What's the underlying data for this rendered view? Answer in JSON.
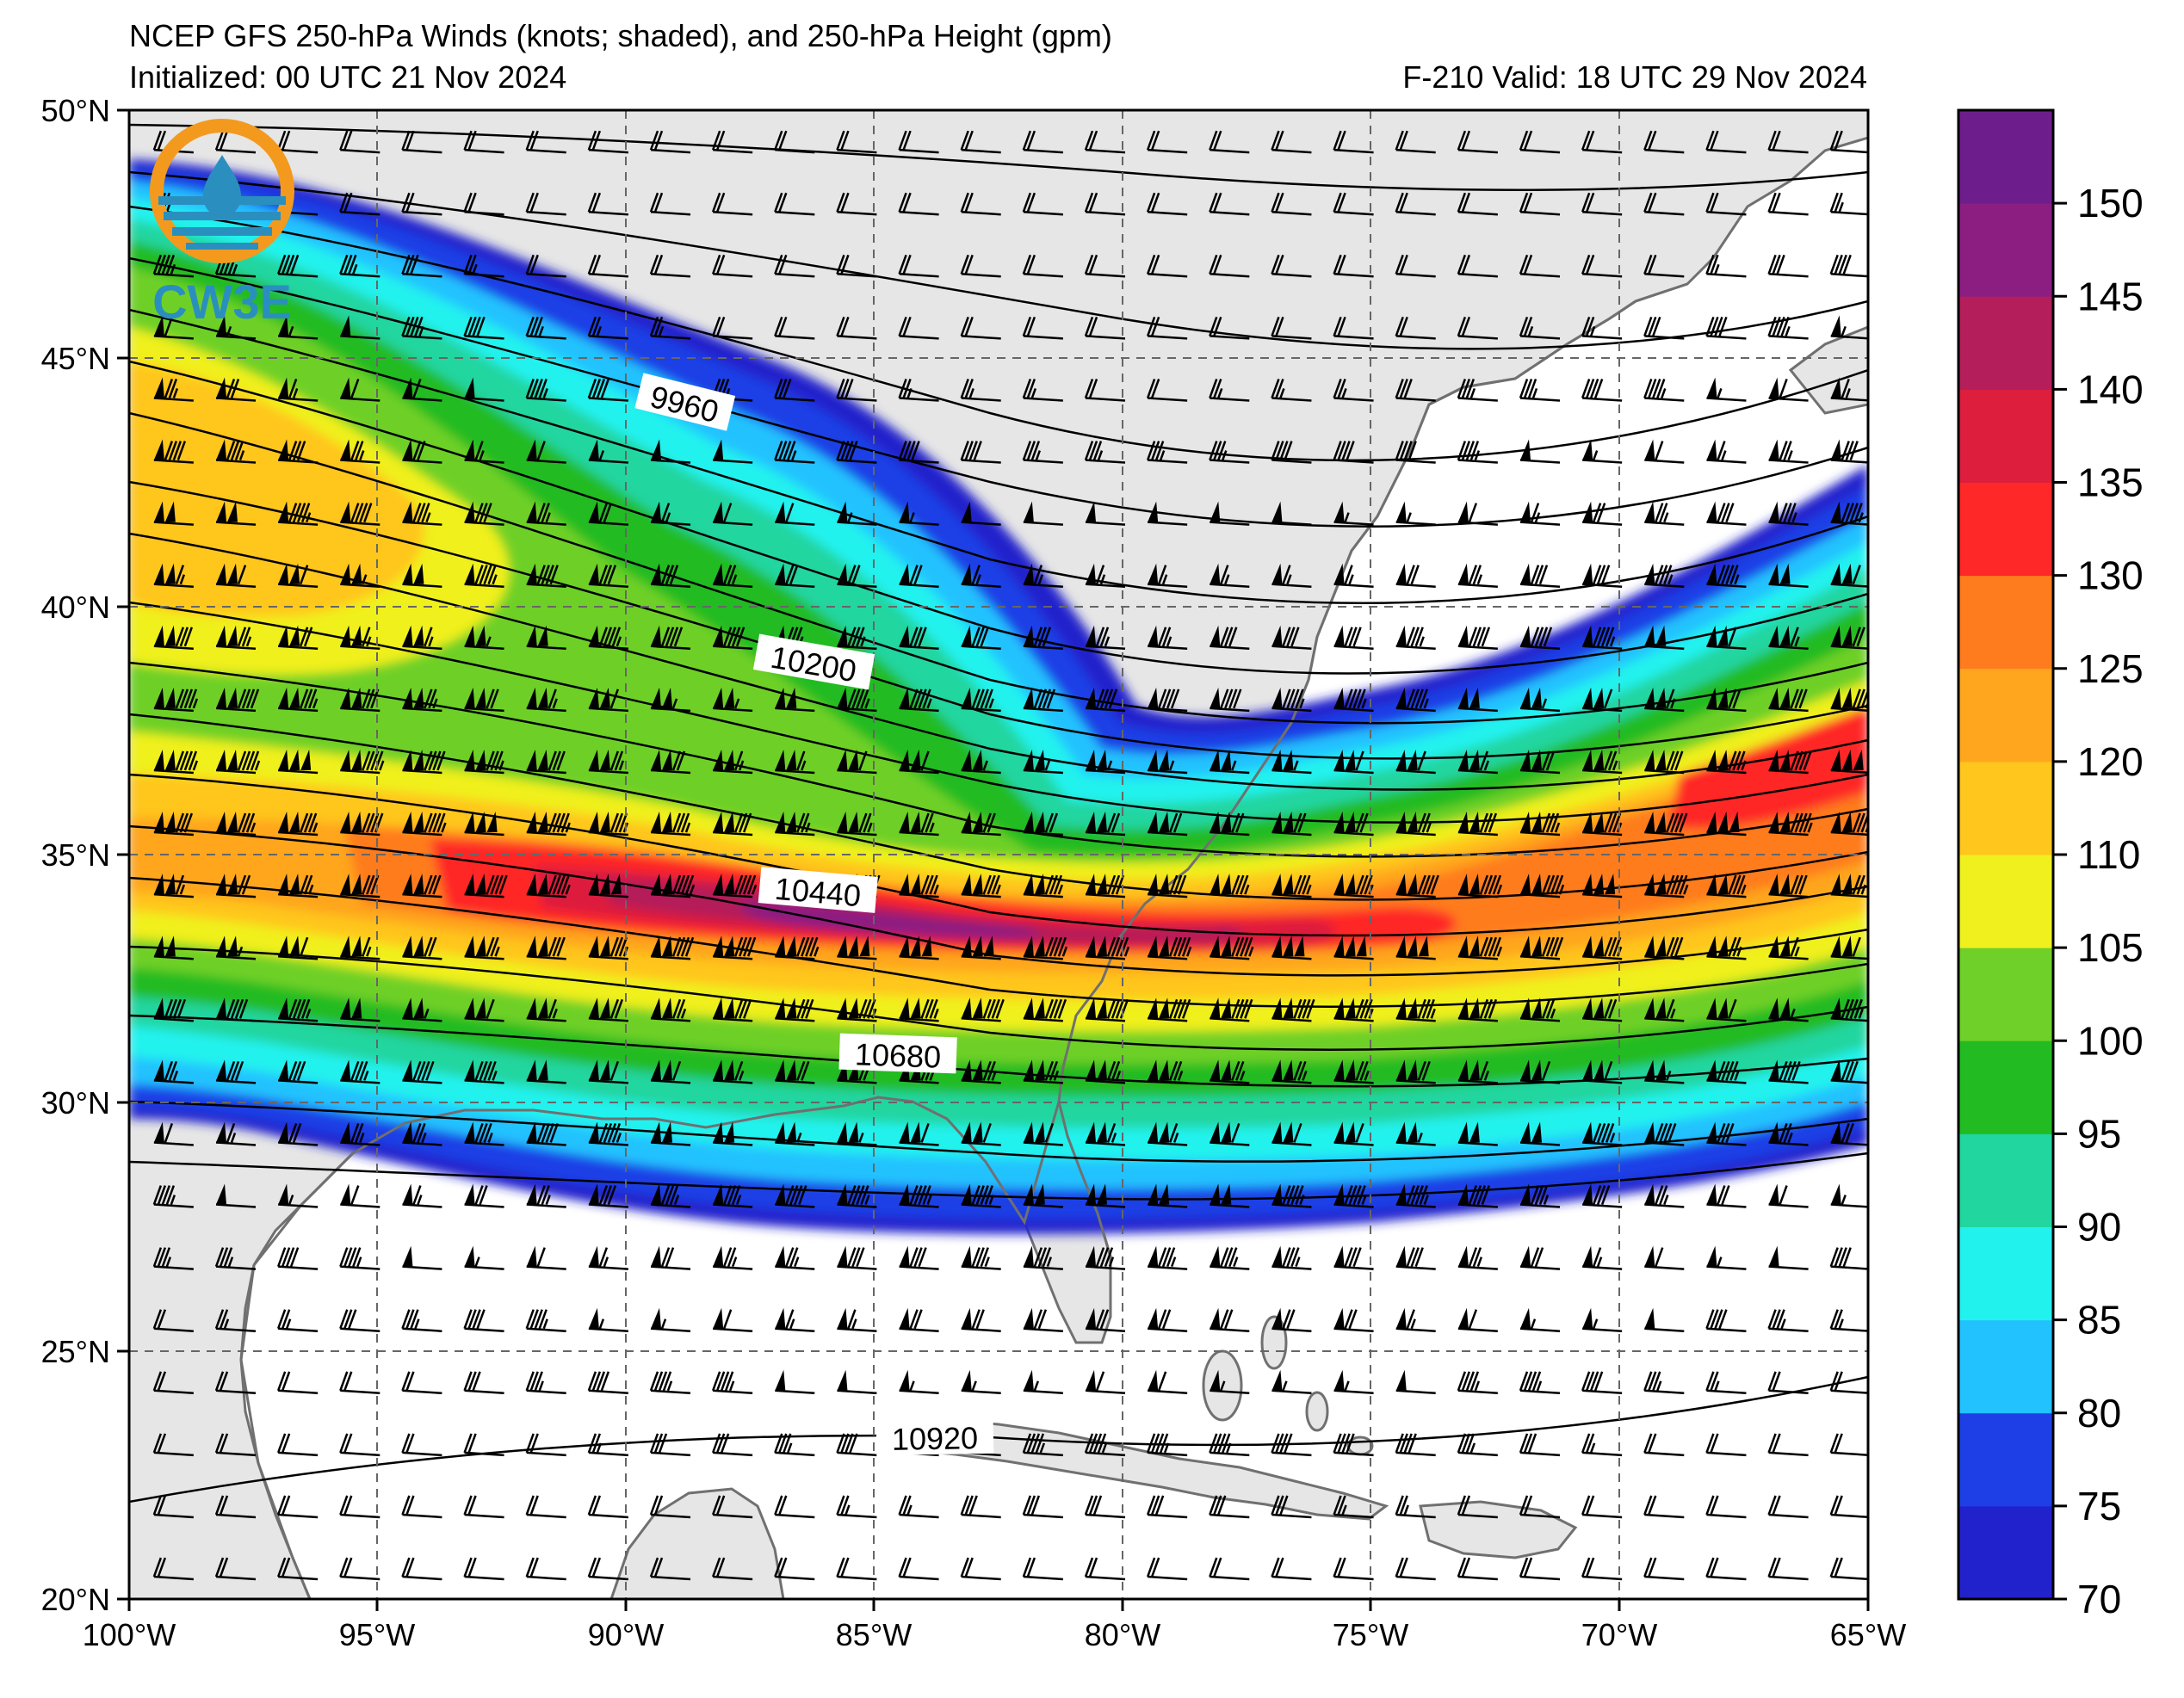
{
  "titles": {
    "line1": "NCEP GFS 250-hPa Winds (knots; shaded), and 250-hPa Height (gpm)",
    "line2": "Initialized: 00 UTC 21 Nov 2024",
    "line3": "F-210  Valid: 18 UTC 29 Nov 2024"
  },
  "logo": {
    "text": "CW3E",
    "colors": {
      "ring": "#f39a1e",
      "body": "#2a8fbf"
    }
  },
  "map": {
    "lon_range": [
      -100,
      -65
    ],
    "lat_range": [
      20,
      50
    ],
    "lon_ticks": [
      "100°W",
      "95°W",
      "90°W",
      "85°W",
      "80°W",
      "75°W",
      "70°W",
      "65°W"
    ],
    "lat_ticks": [
      "50°N",
      "45°N",
      "40°N",
      "35°N",
      "30°N",
      "25°N",
      "20°N"
    ],
    "grid": "dashed",
    "land_color": "#e6e6e6",
    "ocean_color": "#ffffff"
  },
  "contours": {
    "units": "gpm",
    "labels": [
      "9960",
      "10200",
      "10440",
      "10680",
      "10920"
    ]
  },
  "jet": {
    "description_core_lat": [
      {
        "lon": -100,
        "lat": 37.5
      },
      {
        "lon": -95,
        "lat": 36.0
      },
      {
        "lon": -90,
        "lat": 34.0
      },
      {
        "lon": -85,
        "lat": 33.0
      },
      {
        "lon": -80,
        "lat": 32.5
      },
      {
        "lon": -75,
        "lat": 33.0
      },
      {
        "lon": -70,
        "lat": 34.5
      },
      {
        "lon": -65,
        "lat": 37.0
      }
    ],
    "max_speed_kt": 150
  },
  "colorbar": {
    "levels": [
      70,
      75,
      80,
      85,
      90,
      95,
      100,
      105,
      110,
      120,
      125,
      130,
      135,
      140,
      145,
      150,
      155
    ],
    "colors": [
      "#2222cc",
      "#1f3fe6",
      "#22c2ff",
      "#22f2ee",
      "#22d6a0",
      "#22bb22",
      "#6ed028",
      "#f0f01e",
      "#ffc61e",
      "#ffa61e",
      "#ff7c1e",
      "#ff2828",
      "#dd1e3c",
      "#b41e5a",
      "#8c1e82",
      "#6e1e8c"
    ],
    "tick_labels": [
      "70",
      "75",
      "80",
      "85",
      "90",
      "95",
      "100",
      "105",
      "110",
      "120",
      "125",
      "130",
      "135",
      "140",
      "145",
      "150"
    ]
  }
}
